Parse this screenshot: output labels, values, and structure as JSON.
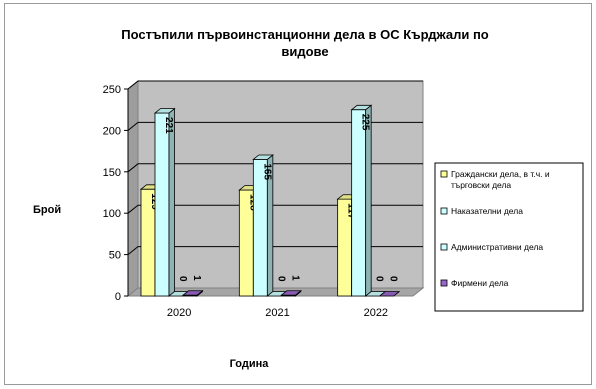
{
  "chart_data": {
    "type": "bar",
    "style": "3d-clustered-column",
    "title_lines": [
      "Постъпили първоинстанционни дела в ОС Кърджали по",
      "видове"
    ],
    "xlabel": "Година",
    "ylabel": "Брой",
    "categories": [
      "2020",
      "2021",
      "2022"
    ],
    "ylim": [
      0,
      250
    ],
    "yticks": [
      0,
      50,
      100,
      150,
      200,
      250
    ],
    "grid": true,
    "legend_position": "right",
    "series": [
      {
        "name_lines": [
          "Граждански дела, в т.ч. и",
          "търговски дела"
        ],
        "values": [
          129,
          128,
          117
        ],
        "color": "#ffff99"
      },
      {
        "name_lines": [
          "Наказателни дела"
        ],
        "values": [
          221,
          165,
          225
        ],
        "color": "#ccffff"
      },
      {
        "name_lines": [
          "Административни дела"
        ],
        "values": [
          0,
          0,
          0
        ],
        "color": "#ccffff"
      },
      {
        "name_lines": [
          "Фирмени дела"
        ],
        "values": [
          1,
          1,
          0
        ],
        "color": "#9966cc"
      }
    ],
    "colors": {
      "wall": "#c0c0c0",
      "floor": "#a6a6a6",
      "grid": "#000000"
    }
  }
}
